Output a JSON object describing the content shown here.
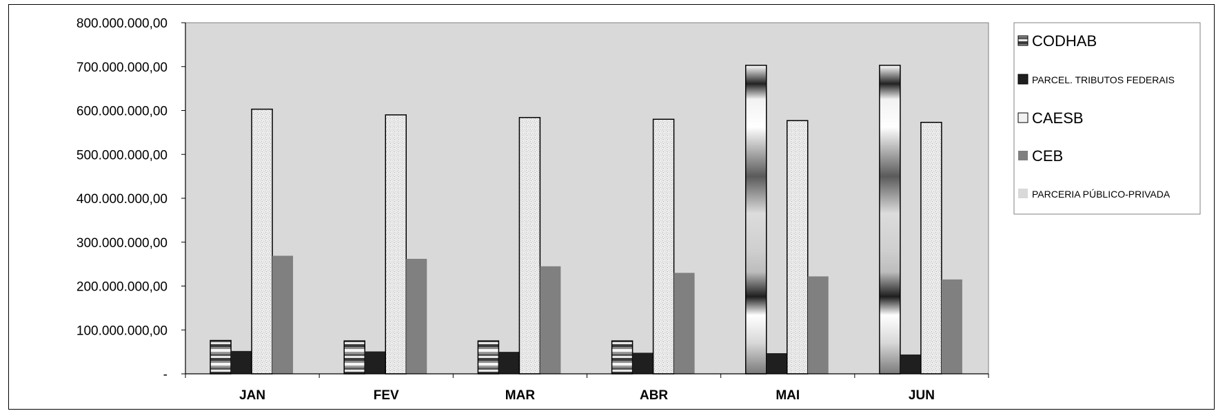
{
  "chart_data": {
    "type": "bar",
    "categories": [
      "JAN",
      "FEV",
      "MAR",
      "ABR",
      "MAI",
      "JUN"
    ],
    "ylim": [
      0,
      800000000
    ],
    "y_ticks": [
      {
        "value": 0,
        "label": "-"
      },
      {
        "value": 100000000,
        "label": "100.000.000,00"
      },
      {
        "value": 200000000,
        "label": "200.000.000,00"
      },
      {
        "value": 300000000,
        "label": "300.000.000,00"
      },
      {
        "value": 400000000,
        "label": "400.000.000,00"
      },
      {
        "value": 500000000,
        "label": "500.000.000,00"
      },
      {
        "value": 600000000,
        "label": "600.000.000,00"
      },
      {
        "value": 700000000,
        "label": "700.000.000,00"
      },
      {
        "value": 800000000,
        "label": "800.000.000,00"
      }
    ],
    "series": [
      {
        "name": "CODHAB",
        "pattern": "stripes",
        "values": [
          76000000,
          75000000,
          75000000,
          75000000,
          null,
          null
        ]
      },
      {
        "name": "PARCERIA PÚBLICO-PRIVADA",
        "pattern": "metallic",
        "values": [
          null,
          null,
          null,
          null,
          703000000,
          703000000
        ]
      },
      {
        "name": "PARCEL. TRIBUTOS FEDERAIS",
        "pattern": "solid-dark",
        "values": [
          52000000,
          51000000,
          50000000,
          48000000,
          47000000,
          44000000
        ]
      },
      {
        "name": "CAESB",
        "pattern": "speckle",
        "values": [
          603000000,
          590000000,
          584000000,
          580000000,
          577000000,
          573000000
        ]
      },
      {
        "name": "CEB",
        "pattern": "solid-gray",
        "values": [
          269000000,
          262000000,
          245000000,
          230000000,
          222000000,
          215000000
        ]
      }
    ],
    "legend": {
      "position": "right",
      "entries": [
        {
          "label": "CODHAB",
          "size": "big",
          "pattern": "stripes"
        },
        {
          "label": "PARCEL. TRIBUTOS FEDERAIS",
          "size": "small",
          "pattern": "solid-dark"
        },
        {
          "label": "CAESB",
          "size": "big",
          "pattern": "speckle-light"
        },
        {
          "label": "CEB",
          "size": "big",
          "pattern": "solid-gray"
        },
        {
          "label": "PARCERIA PÚBLICO-PRIVADA",
          "size": "small",
          "pattern": "plain-light"
        }
      ]
    },
    "plot_background": "#d9d9d9",
    "grid": false
  }
}
